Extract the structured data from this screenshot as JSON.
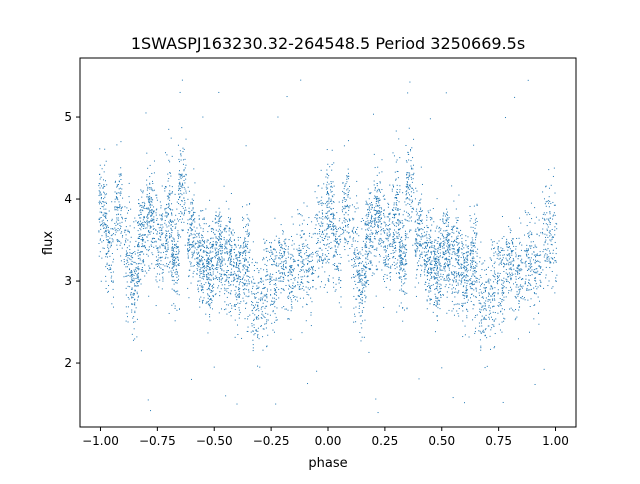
{
  "chart_data": {
    "type": "scatter",
    "title": "1SWASPJ163230.32-264548.5 Period 3250669.5s",
    "xlabel": "phase",
    "ylabel": "flux",
    "xlim": [
      -1.09,
      1.09
    ],
    "ylim": [
      1.22,
      5.72
    ],
    "xticks": [
      -1.0,
      -0.75,
      -0.5,
      -0.25,
      0.0,
      0.25,
      0.5,
      0.75,
      1.0
    ],
    "xtick_labels": [
      "−1.00",
      "−0.75",
      "−0.50",
      "−0.25",
      "0.00",
      "0.25",
      "0.50",
      "0.75",
      "1.00"
    ],
    "yticks": [
      2,
      3,
      4,
      5
    ],
    "ytick_labels": [
      "2",
      "3",
      "4",
      "5"
    ],
    "grid": false,
    "marker_color": "#1f77b4",
    "note_on_points": "Light curve is mirrored: points at phase p in [-1,0] are repeated at p+1. Clusters below list approximate data (phase, median flux, spread, relative density) for the half-period range [-1,0].",
    "clusters": [
      {
        "phase": -0.99,
        "center": 3.9,
        "spread": 0.28,
        "count": 55
      },
      {
        "phase": -0.96,
        "center": 3.35,
        "spread": 0.3,
        "count": 45
      },
      {
        "phase": -0.92,
        "center": 3.85,
        "spread": 0.3,
        "count": 50
      },
      {
        "phase": -0.88,
        "center": 3.3,
        "spread": 0.35,
        "count": 45
      },
      {
        "phase": -0.85,
        "center": 3.0,
        "spread": 0.28,
        "count": 55
      },
      {
        "phase": -0.82,
        "center": 3.55,
        "spread": 0.3,
        "count": 70
      },
      {
        "phase": -0.78,
        "center": 3.8,
        "spread": 0.3,
        "count": 75
      },
      {
        "phase": -0.74,
        "center": 3.45,
        "spread": 0.28,
        "count": 55
      },
      {
        "phase": -0.7,
        "center": 3.75,
        "spread": 0.35,
        "count": 70
      },
      {
        "phase": -0.67,
        "center": 3.3,
        "spread": 0.28,
        "count": 70
      },
      {
        "phase": -0.64,
        "center": 4.1,
        "spread": 0.3,
        "count": 50
      },
      {
        "phase": -0.6,
        "center": 3.55,
        "spread": 0.28,
        "count": 65
      },
      {
        "phase": -0.56,
        "center": 3.3,
        "spread": 0.25,
        "count": 80
      },
      {
        "phase": -0.52,
        "center": 3.2,
        "spread": 0.3,
        "count": 90
      },
      {
        "phase": -0.48,
        "center": 3.35,
        "spread": 0.25,
        "count": 80
      },
      {
        "phase": -0.44,
        "center": 3.3,
        "spread": 0.28,
        "count": 75
      },
      {
        "phase": -0.4,
        "center": 3.1,
        "spread": 0.28,
        "count": 70
      },
      {
        "phase": -0.36,
        "center": 3.2,
        "spread": 0.3,
        "count": 70
      },
      {
        "phase": -0.32,
        "center": 2.7,
        "spread": 0.3,
        "count": 45
      },
      {
        "phase": -0.28,
        "center": 2.85,
        "spread": 0.3,
        "count": 45
      },
      {
        "phase": -0.24,
        "center": 3.05,
        "spread": 0.28,
        "count": 50
      },
      {
        "phase": -0.2,
        "center": 3.2,
        "spread": 0.25,
        "count": 50
      },
      {
        "phase": -0.16,
        "center": 3.1,
        "spread": 0.25,
        "count": 45
      },
      {
        "phase": -0.12,
        "center": 3.25,
        "spread": 0.3,
        "count": 45
      },
      {
        "phase": -0.08,
        "center": 3.15,
        "spread": 0.28,
        "count": 40
      },
      {
        "phase": -0.04,
        "center": 3.6,
        "spread": 0.3,
        "count": 40
      },
      {
        "phase": -0.01,
        "center": 3.5,
        "spread": 0.3,
        "count": 30
      }
    ],
    "outliers": [
      [
        -0.91,
        4.7
      ],
      [
        -0.86,
        2.35
      ],
      [
        -0.82,
        2.15
      ],
      [
        -0.8,
        5.05
      ],
      [
        -0.79,
        1.55
      ],
      [
        -0.78,
        1.42
      ],
      [
        -0.7,
        4.85
      ],
      [
        -0.65,
        5.3
      ],
      [
        -0.64,
        5.45
      ],
      [
        -0.6,
        1.8
      ],
      [
        -0.55,
        5.0
      ],
      [
        -0.5,
        1.95
      ],
      [
        -0.48,
        5.3
      ],
      [
        -0.45,
        1.6
      ],
      [
        -0.4,
        1.5
      ],
      [
        -0.38,
        2.3
      ],
      [
        -0.36,
        4.65
      ],
      [
        -0.3,
        1.95
      ],
      [
        -0.27,
        2.2
      ],
      [
        -0.23,
        1.5
      ],
      [
        -0.22,
        5.0
      ],
      [
        -0.18,
        5.25
      ],
      [
        -0.12,
        5.45
      ],
      [
        -0.09,
        1.75
      ],
      [
        -0.05,
        1.9
      ],
      [
        -0.03,
        4.35
      ]
    ]
  }
}
